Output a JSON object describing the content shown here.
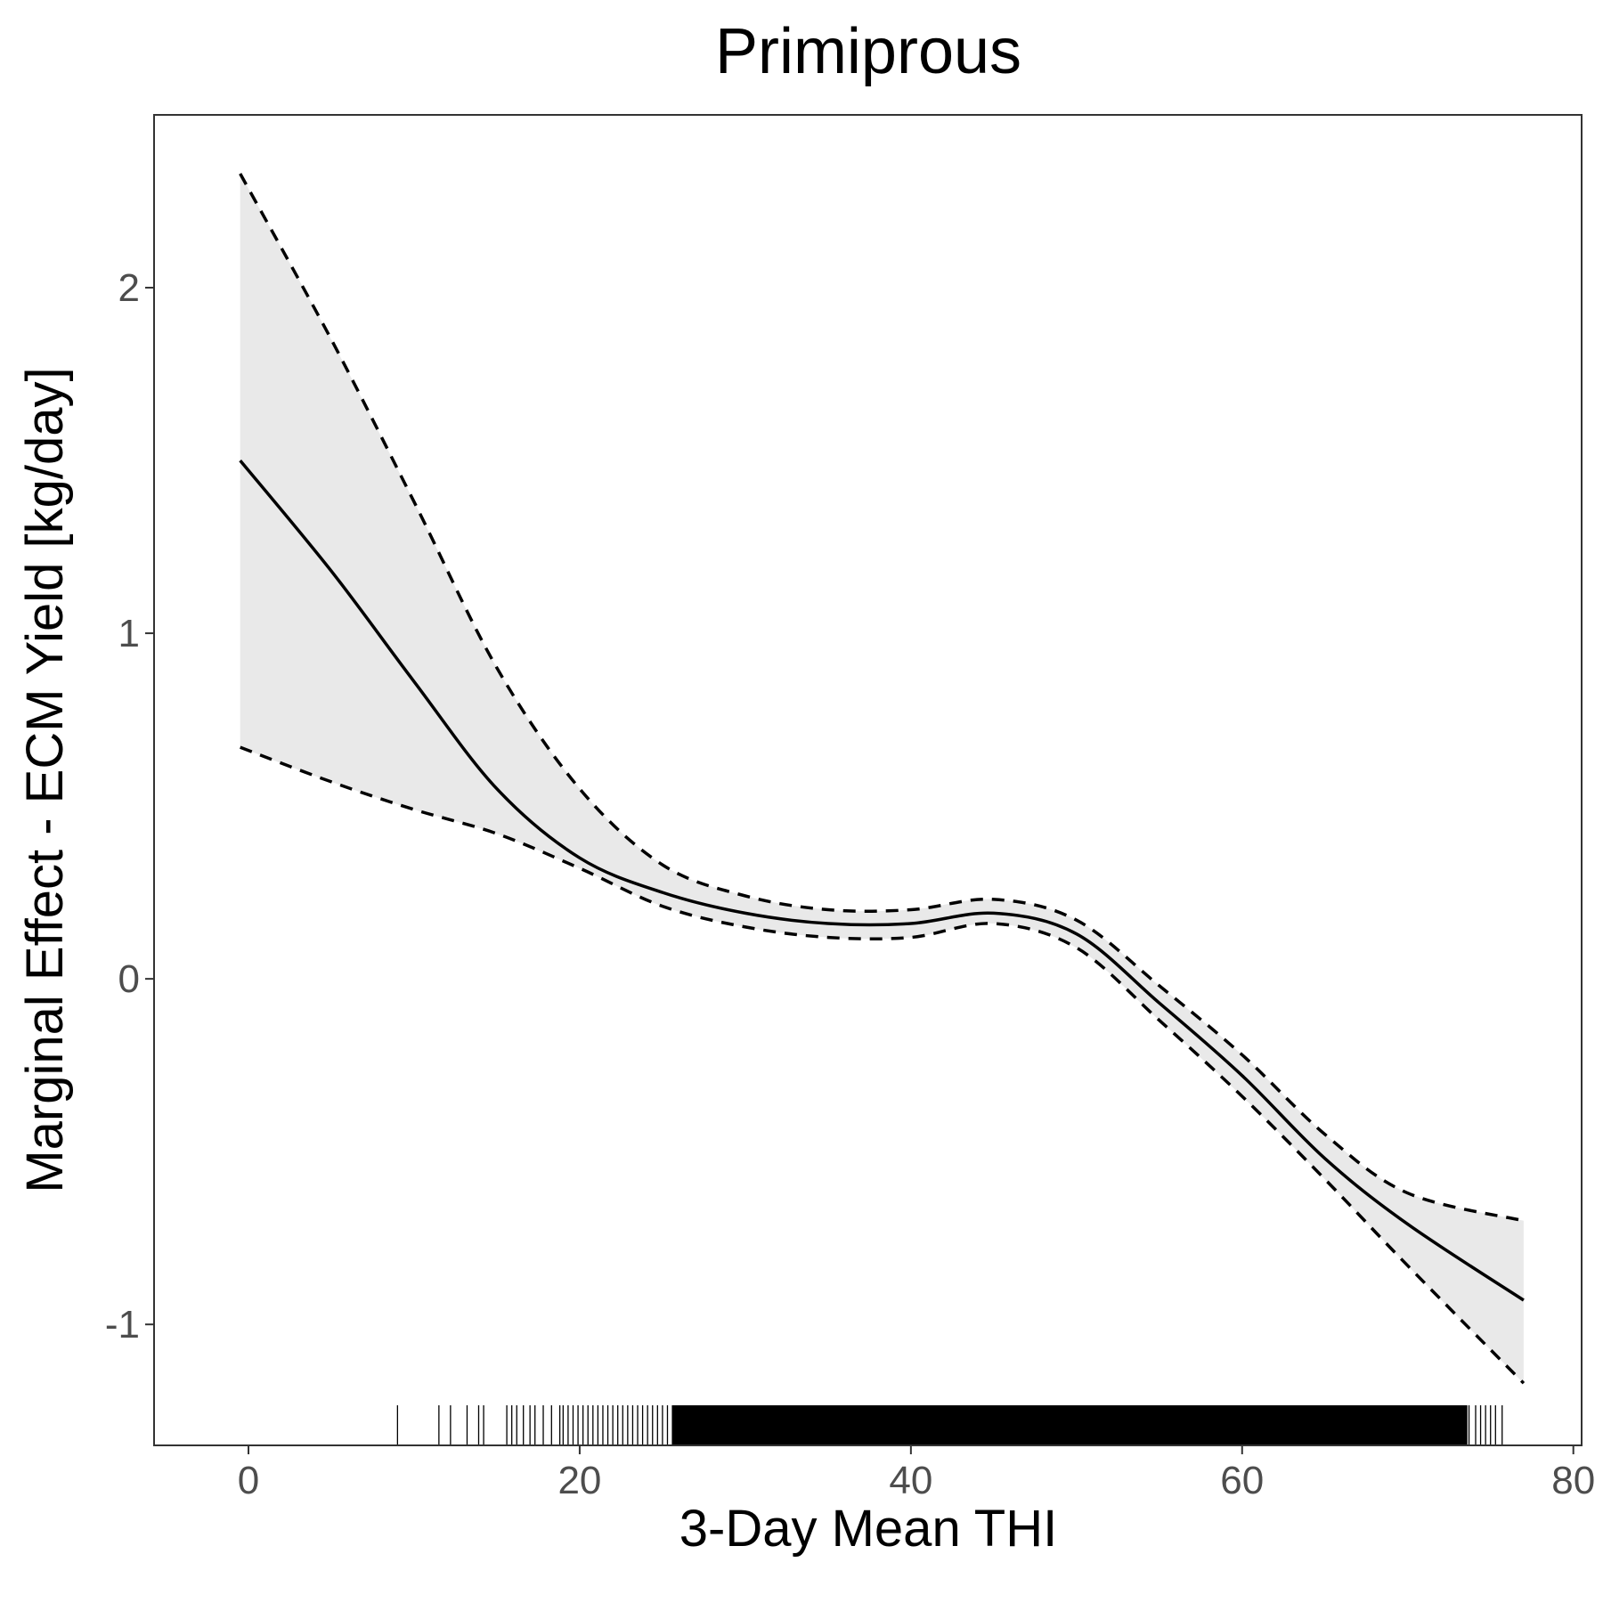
{
  "chart_data": {
    "type": "line",
    "title": "Primiprous",
    "xlabel": "3-Day Mean THI",
    "ylabel": "Marginal Effect - ECM Yield [kg/day]",
    "xlim": [
      -5.7,
      80.5
    ],
    "ylim": [
      -1.35,
      2.5
    ],
    "x_ticks": [
      0,
      20,
      40,
      60,
      80
    ],
    "y_ticks": [
      -1,
      0,
      1,
      2
    ],
    "grid": false,
    "legend": "none",
    "x": [
      -0.5,
      5,
      10,
      15,
      20,
      25,
      30,
      35,
      40,
      45,
      50,
      55,
      60,
      65,
      70,
      77
    ],
    "series": [
      {
        "role": "estimate",
        "style": "solid",
        "values": [
          1.5,
          1.18,
          0.86,
          0.55,
          0.35,
          0.25,
          0.19,
          0.16,
          0.16,
          0.19,
          0.13,
          -0.07,
          -0.28,
          -0.52,
          -0.71,
          -0.93
        ]
      },
      {
        "role": "upper",
        "style": "dashed",
        "values": [
          2.33,
          1.85,
          1.38,
          0.9,
          0.55,
          0.33,
          0.24,
          0.2,
          0.2,
          0.23,
          0.17,
          -0.02,
          -0.22,
          -0.45,
          -0.62,
          -0.7
        ]
      },
      {
        "role": "lower",
        "style": "dashed",
        "values": [
          0.67,
          0.57,
          0.49,
          0.42,
          0.32,
          0.21,
          0.15,
          0.12,
          0.12,
          0.16,
          0.09,
          -0.12,
          -0.34,
          -0.58,
          -0.83,
          -1.17
        ]
      }
    ],
    "rug": [
      9,
      11.5,
      12.2,
      13.2,
      13.9,
      14.2,
      15.6,
      15.9,
      16.2,
      16.6,
      17,
      17.3,
      17.8,
      18.3,
      18.8,
      19,
      19.3,
      19.6,
      19.9,
      20.2,
      20.5,
      20.8,
      21.1,
      21.4,
      21.7,
      22,
      22.3,
      22.6,
      22.9,
      23.2,
      23.5,
      23.8,
      24.1,
      24.4,
      24.7,
      25,
      25.3,
      25.6,
      73.7,
      74.1,
      74.4,
      74.7,
      75,
      75.3,
      75.7
    ],
    "rug_dense_range": [
      25.6,
      73.6
    ],
    "colors": {
      "line": "#000000",
      "band": "#e9e9e9",
      "panel_border": "#333333",
      "tick_text": "#4d4d4d"
    }
  }
}
